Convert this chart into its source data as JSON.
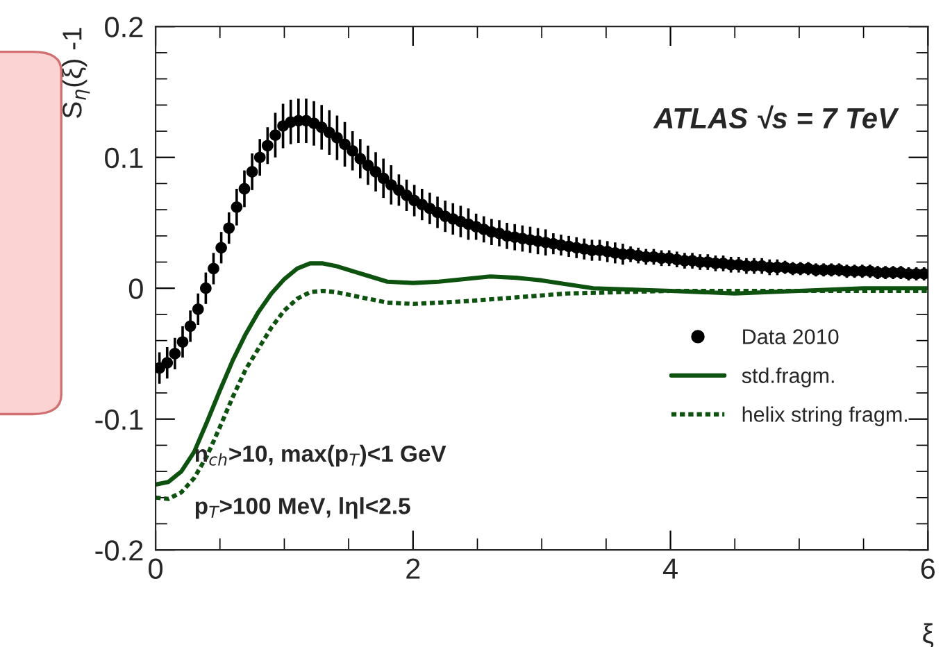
{
  "chart_data": {
    "type": "scatter",
    "xlabel": "ξ",
    "ylabel": "S$_{η}$(ξ) -1",
    "annotations": [
      "ATLAS √s = 7 TeV",
      "n$_{ch}$>10, max(p$_{T}$)<1 GeV",
      "p$_{T}$>100 MeV, lηl<2.5"
    ],
    "xlim": [
      0,
      6
    ],
    "xticks": [
      0,
      2,
      4,
      6
    ],
    "ylim": [
      -0.2,
      0.2
    ],
    "yticks": [
      -0.2,
      -0.1,
      0,
      0.1,
      0.2
    ],
    "legend": "bottom right",
    "grid": false,
    "series": [
      {
        "name": "Data 2010",
        "type": "scatter",
        "marker": "circle",
        "color": "#000000",
        "x": [
          0.03,
          0.09,
          0.15,
          0.21,
          0.27,
          0.33,
          0.39,
          0.45,
          0.51,
          0.57,
          0.63,
          0.69,
          0.75,
          0.81,
          0.87,
          0.93,
          0.99,
          1.05,
          1.11,
          1.17,
          1.23,
          1.29,
          1.35,
          1.41,
          1.47,
          1.53,
          1.59,
          1.65,
          1.71,
          1.77,
          1.83,
          1.89,
          1.95,
          2.01,
          2.07,
          2.13,
          2.19,
          2.25,
          2.31,
          2.37,
          2.43,
          2.49,
          2.55,
          2.61,
          2.67,
          2.73,
          2.79,
          2.85,
          2.91,
          2.97,
          3.03,
          3.09,
          3.15,
          3.21,
          3.27,
          3.33,
          3.39,
          3.45,
          3.51,
          3.57,
          3.63,
          3.69,
          3.75,
          3.81,
          3.87,
          3.93,
          3.99,
          4.05,
          4.11,
          4.17,
          4.23,
          4.29,
          4.35,
          4.41,
          4.47,
          4.53,
          4.59,
          4.65,
          4.71,
          4.77,
          4.83,
          4.89,
          4.95,
          5.01,
          5.07,
          5.13,
          5.19,
          5.25,
          5.31,
          5.37,
          5.43,
          5.49,
          5.55,
          5.61,
          5.67,
          5.73,
          5.79,
          5.85,
          5.91,
          5.97
        ],
        "values": [
          -0.061,
          -0.057,
          -0.05,
          -0.041,
          -0.029,
          -0.016,
          0.0,
          0.015,
          0.031,
          0.046,
          0.062,
          0.076,
          0.089,
          0.1,
          0.109,
          0.117,
          0.124,
          0.127,
          0.128,
          0.128,
          0.126,
          0.123,
          0.119,
          0.115,
          0.11,
          0.105,
          0.099,
          0.094,
          0.089,
          0.084,
          0.079,
          0.075,
          0.071,
          0.067,
          0.064,
          0.061,
          0.058,
          0.055,
          0.053,
          0.051,
          0.049,
          0.047,
          0.045,
          0.043,
          0.042,
          0.04,
          0.039,
          0.038,
          0.037,
          0.036,
          0.035,
          0.034,
          0.033,
          0.032,
          0.031,
          0.03,
          0.029,
          0.029,
          0.028,
          0.027,
          0.026,
          0.026,
          0.025,
          0.024,
          0.024,
          0.023,
          0.023,
          0.022,
          0.021,
          0.021,
          0.02,
          0.02,
          0.019,
          0.019,
          0.018,
          0.018,
          0.017,
          0.017,
          0.017,
          0.016,
          0.016,
          0.016,
          0.015,
          0.015,
          0.015,
          0.014,
          0.014,
          0.014,
          0.014,
          0.013,
          0.013,
          0.013,
          0.013,
          0.012,
          0.012,
          0.012,
          0.012,
          0.011,
          0.011,
          0.011
        ],
        "errors": [
          0.012,
          0.012,
          0.012,
          0.012,
          0.012,
          0.012,
          0.012,
          0.012,
          0.012,
          0.012,
          0.014,
          0.014,
          0.014,
          0.014,
          0.014,
          0.017,
          0.017,
          0.017,
          0.017,
          0.017,
          0.017,
          0.017,
          0.017,
          0.017,
          0.017,
          0.015,
          0.015,
          0.015,
          0.015,
          0.015,
          0.015,
          0.012,
          0.012,
          0.012,
          0.012,
          0.012,
          0.012,
          0.012,
          0.012,
          0.012,
          0.012,
          0.01,
          0.01,
          0.01,
          0.01,
          0.01,
          0.01,
          0.01,
          0.01,
          0.01,
          0.01,
          0.008,
          0.008,
          0.008,
          0.008,
          0.008,
          0.008,
          0.008,
          0.008,
          0.008,
          0.008,
          0.006,
          0.006,
          0.006,
          0.006,
          0.006,
          0.006,
          0.006,
          0.006,
          0.006,
          0.006,
          0.006,
          0.006,
          0.006,
          0.006,
          0.006,
          0.006,
          0.006,
          0.006,
          0.006,
          0.006,
          0.005,
          0.005,
          0.005,
          0.005,
          0.005,
          0.005,
          0.005,
          0.005,
          0.005,
          0.005,
          0.005,
          0.005,
          0.005,
          0.005,
          0.005,
          0.005,
          0.005,
          0.005,
          0.005
        ]
      },
      {
        "name": "std.fragm.",
        "type": "line",
        "line_style": "solid",
        "color": "#0e5210",
        "x": [
          0,
          0.1,
          0.2,
          0.3,
          0.4,
          0.5,
          0.6,
          0.7,
          0.8,
          0.9,
          1.0,
          1.1,
          1.2,
          1.3,
          1.4,
          1.6,
          1.8,
          2.0,
          2.2,
          2.4,
          2.6,
          2.8,
          3.0,
          3.4,
          4.0,
          4.5,
          5.0,
          5.5,
          6.0
        ],
        "values": [
          -0.15,
          -0.148,
          -0.14,
          -0.125,
          -0.102,
          -0.078,
          -0.055,
          -0.035,
          -0.018,
          -0.004,
          0.007,
          0.015,
          0.019,
          0.019,
          0.017,
          0.011,
          0.005,
          0.004,
          0.005,
          0.007,
          0.009,
          0.008,
          0.006,
          0.0,
          -0.002,
          -0.004,
          -0.002,
          0.0,
          0.0
        ]
      },
      {
        "name": "helix string fragm.",
        "type": "line",
        "line_style": "dotted",
        "color": "#0e5210",
        "x": [
          0,
          0.1,
          0.2,
          0.3,
          0.4,
          0.5,
          0.6,
          0.7,
          0.8,
          0.9,
          1.0,
          1.1,
          1.2,
          1.3,
          1.4,
          1.6,
          1.8,
          2.0,
          2.4,
          2.8,
          3.2,
          4.0,
          5.0,
          6.0
        ],
        "values": [
          -0.16,
          -0.161,
          -0.156,
          -0.145,
          -0.128,
          -0.106,
          -0.083,
          -0.062,
          -0.046,
          -0.03,
          -0.017,
          -0.008,
          -0.003,
          -0.002,
          -0.003,
          -0.007,
          -0.011,
          -0.012,
          -0.01,
          -0.007,
          -0.004,
          -0.002,
          -0.002,
          -0.002
        ]
      }
    ]
  }
}
